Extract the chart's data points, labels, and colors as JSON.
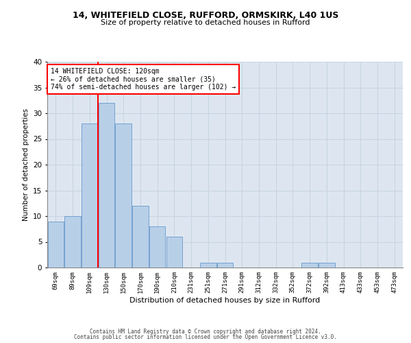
{
  "title1": "14, WHITEFIELD CLOSE, RUFFORD, ORMSKIRK, L40 1US",
  "title2": "Size of property relative to detached houses in Rufford",
  "xlabel": "Distribution of detached houses by size in Rufford",
  "ylabel": "Number of detached properties",
  "categories": [
    "69sqm",
    "89sqm",
    "109sqm",
    "130sqm",
    "150sqm",
    "170sqm",
    "190sqm",
    "210sqm",
    "231sqm",
    "251sqm",
    "271sqm",
    "291sqm",
    "312sqm",
    "332sqm",
    "352sqm",
    "372sqm",
    "392sqm",
    "413sqm",
    "433sqm",
    "453sqm",
    "473sqm"
  ],
  "values": [
    9,
    10,
    28,
    32,
    28,
    12,
    8,
    6,
    0,
    1,
    1,
    0,
    0,
    0,
    0,
    1,
    1,
    0,
    0,
    0,
    0
  ],
  "bar_color": "#b8cfe8",
  "bar_edge_color": "#6699cc",
  "grid_color": "#c8d4e4",
  "background_color": "#dde6f0",
  "red_line_x": 2.5,
  "annotation_line1": "14 WHITEFIELD CLOSE: 120sqm",
  "annotation_line2": "← 26% of detached houses are smaller (35)",
  "annotation_line3": "74% of semi-detached houses are larger (102) →",
  "footer1": "Contains HM Land Registry data © Crown copyright and database right 2024.",
  "footer2": "Contains public sector information licensed under the Open Government Licence v3.0.",
  "ylim": [
    0,
    40
  ],
  "yticks": [
    0,
    5,
    10,
    15,
    20,
    25,
    30,
    35,
    40
  ]
}
